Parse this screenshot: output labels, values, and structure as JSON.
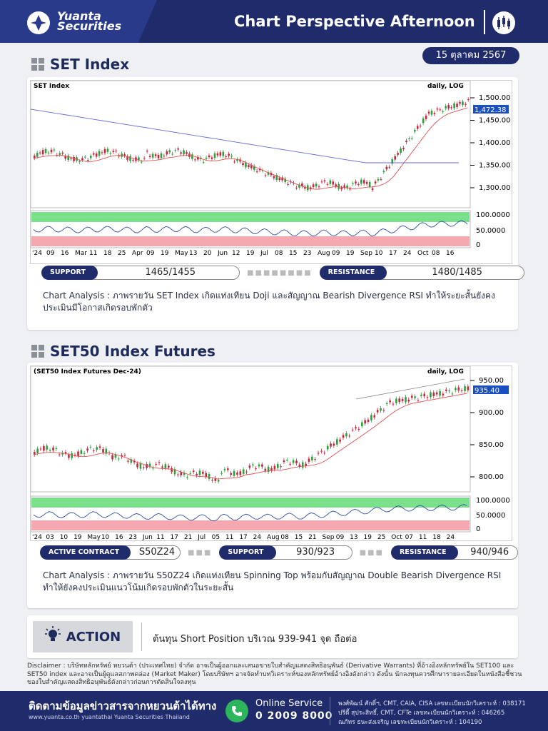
{
  "brand": {
    "line1": "Yuanta",
    "line2": "Securities"
  },
  "header": {
    "title": "Chart Perspective Afternoon"
  },
  "date": "15 ตุลาคม 2567",
  "set": {
    "section_title": "SET Index",
    "chart_title": "SET Index",
    "scale_label": "daily, LOG",
    "last_price_tag": "1,472.38",
    "price_ticks": [
      "1,500.00",
      "1,450.00",
      "1,400.00",
      "1,350.00",
      "1,300.00"
    ],
    "rsi_ticks": [
      "100.0000",
      "50.0000",
      "0"
    ],
    "date_labels": [
      "'24",
      "09",
      "16",
      "Mar",
      "11",
      "18",
      "25",
      "Apr",
      "09",
      "19",
      "May",
      "13",
      "20",
      "Jun",
      "12",
      "19",
      "Jul",
      "08",
      "15",
      "23",
      "Aug",
      "09",
      "19",
      "Sep",
      "10",
      "17",
      "24",
      "Oct",
      "08",
      "16"
    ],
    "support_label": "SUPPORT :",
    "support_value": "1465/1455",
    "resistance_label": "RESISTANCE :",
    "resistance_value": "1480/1485",
    "analysis": "Chart Analysis : ภาพรายวัน SET Index เกิดแท่งเทียน Doji และสัญญาณ Bearish Divergence RSI ทำให้ระยะสั้นยังคงประเมินมีโอกาสเกิดรอบพักตัว"
  },
  "s50": {
    "section_title": "SET50 Index Futures",
    "chart_title": "(SET50 Index Futures Dec-24)",
    "scale_label": "daily, LOG",
    "last_price_tag": "935.40",
    "price_ticks": [
      "950.00",
      "900.00",
      "850.00",
      "800.00"
    ],
    "rsi_ticks": [
      "100.0000",
      "50.0000",
      "0"
    ],
    "date_labels": [
      "'24",
      "03",
      "10",
      "19",
      "May",
      "10",
      "16",
      "23",
      "Jun",
      "11",
      "17",
      "21",
      "Jul",
      "05",
      "11",
      "17",
      "24",
      "Aug",
      "08",
      "15",
      "21",
      "Sep",
      "09",
      "13",
      "19",
      "25",
      "Oct",
      "07",
      "11",
      "18",
      "24"
    ],
    "active_label": "ACTIVE CONTRACT :",
    "active_value": "S50Z24",
    "support_label": "SUPPORT :",
    "support_value": "930/923",
    "resistance_label": "RESISTANCE :",
    "resistance_value": "940/946",
    "analysis": "Chart Analysis : ภาพรายวัน S50Z24 เกิดแท่งเทียน Spinning Top พร้อมกับสัญญาณ Double Bearish Divergence RSI ทำให้ยังคงประเมินแนวโน้มเกิดรอบพักตัวในระยะสั้น"
  },
  "action": {
    "label": "ACTION",
    "text": "ต้นทุน Short Position บริเวณ 939-941 จุด ถือต่อ"
  },
  "disclaimer": "Disclaimer : บริษัทหลักทรัพย์ หยวนต้า (ประเทศไทย) จำกัด อาจเป็นผู้ออกและเสนอขายใบสำคัญแสดงสิทธิอนุพันธ์ (Derivative Warrants) ที่อ้างอิงหลักทรัพย์ใน SET100 และ SET50 index และอาจเป็นผู้ดูแลสภาพคล่อง (Market Maker) โดยบริษัทฯ อาจจัดทำบทวิเคราะห์ของหลักทรัพย์อ้างอิงดังกล่าว ดังนั้น นักลงทุนควรศึกษารายละเอียดในหนังสือชี้ชวนของใบสำคัญแสดงสิทธิอนุพันธ์ดังกล่าวก่อนการตัดสินใจลงทุน",
  "footer": {
    "follow": "ติดตามข้อมูลข่าวสารจากหยวนต้าได้ทาง",
    "links": "www.yuanta.co.th   yuantathai   Yuanta Securities Thailand",
    "online": "Online Service",
    "phone": "0 2009 8000",
    "analysts": [
      "พงศ์พัฒน์ ศักดิ์ฯ, CMT, CAIA, CISA เลขทะเบียนนักวิเคราะห์ : 038171",
      "ปรีดี้ สุประสิทธิ์, CMT, CFTe เลขทะเบียนนักวิเคราะห์ : 046265",
      "ณภัทร ธนะส่งเจริญ เลขทะเบียนนักวิเคราะห์ : 104190"
    ]
  },
  "colors": {
    "navy": "#1f2b6b",
    "up": "#2e9e3c",
    "down": "#c0283c",
    "ma_red": "#e05050",
    "ma_blue": "#6a6ad8",
    "rsi_green": "#7be08a",
    "rsi_red": "#f6a8b0"
  }
}
